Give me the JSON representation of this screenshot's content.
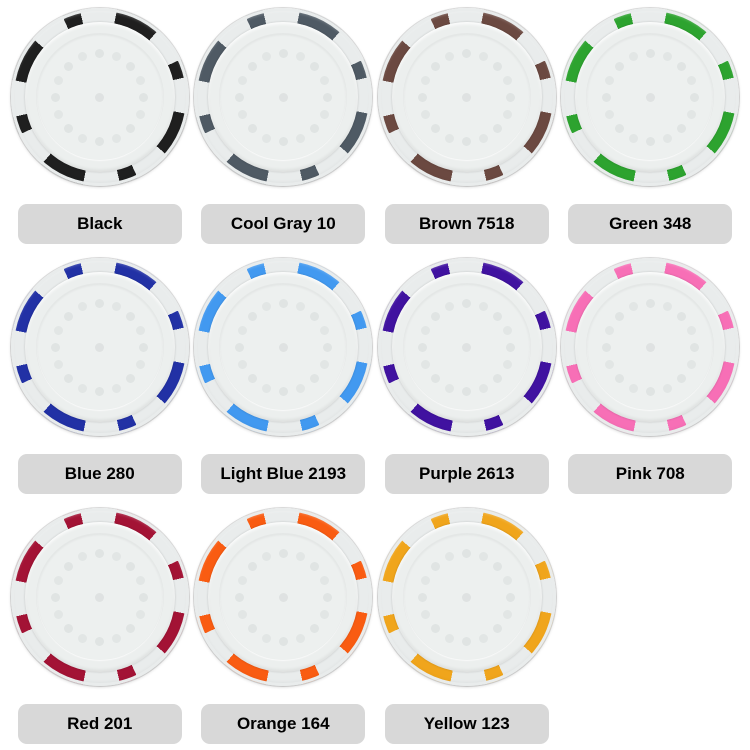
{
  "style": {
    "page_background": "#ffffff",
    "chip_body": "#e9ecec",
    "chip_face": "#ecefee",
    "label_background": "#d8d8d8",
    "label_text": "#000000"
  },
  "chips": [
    {
      "label": "Black",
      "color": "#1f1f1f"
    },
    {
      "label": "Cool Gray 10",
      "color": "#4f5a64"
    },
    {
      "label": "Brown 7518",
      "color": "#6b4941"
    },
    {
      "label": "Green 348",
      "color": "#2da32f"
    },
    {
      "label": "Blue 280",
      "color": "#2231a5"
    },
    {
      "label": "Light Blue 2193",
      "color": "#4299f0"
    },
    {
      "label": "Purple 2613",
      "color": "#4012a0"
    },
    {
      "label": "Pink 708",
      "color": "#f76fb6"
    },
    {
      "label": "Red 201",
      "color": "#a31335"
    },
    {
      "label": "Orange 164",
      "color": "#f95c12"
    },
    {
      "label": "Yellow 123",
      "color": "#f0a51c"
    }
  ]
}
